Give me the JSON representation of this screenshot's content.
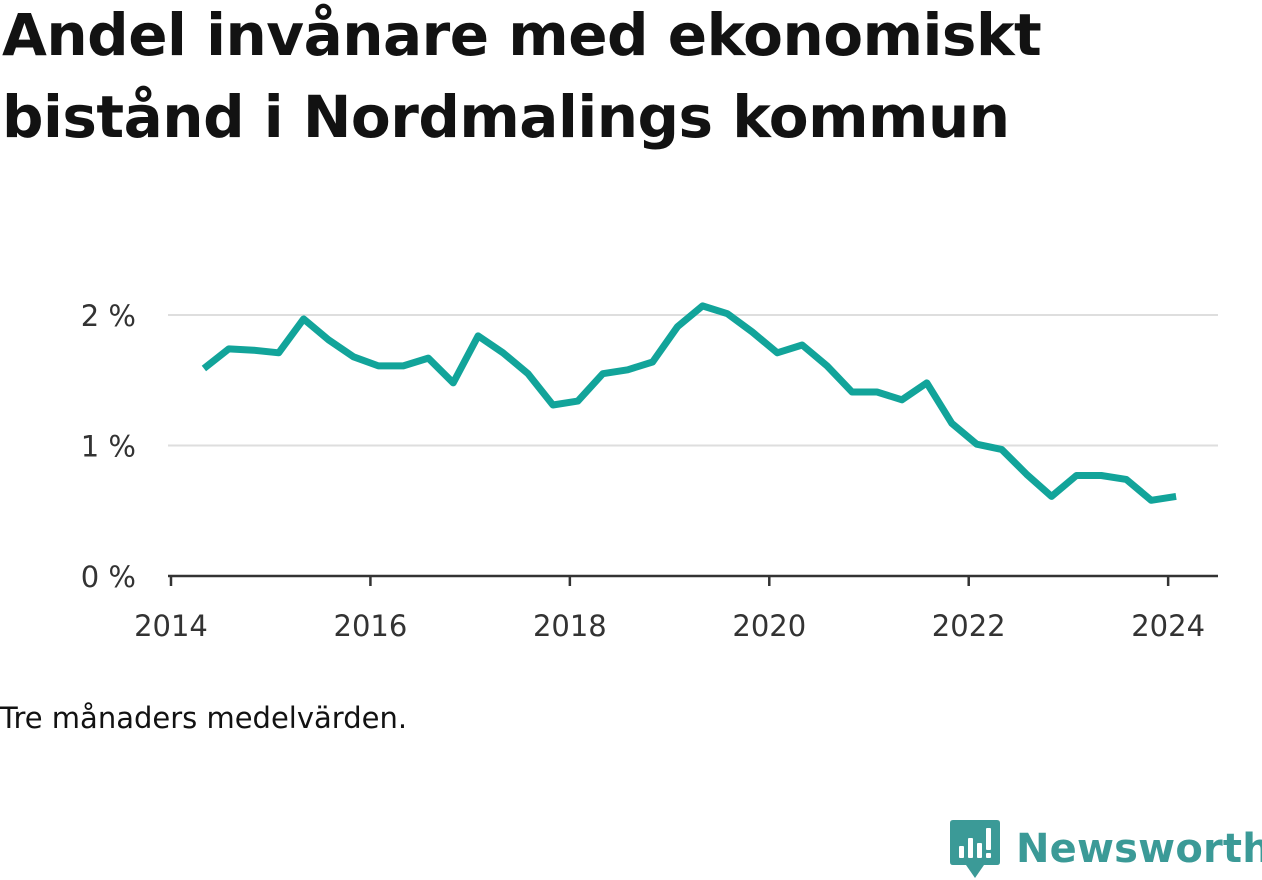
{
  "title": "Andel invånare med ekonomiskt bistånd i Nordmalings kommun",
  "note": "Tre månaders medelvärden.",
  "brand": {
    "name": "Newsworthy",
    "icon": "newsworthy-logo-icon",
    "color": "#3b9a97"
  },
  "chart_data": {
    "type": "line",
    "title": "Andel invånare med ekonomiskt bistånd i Nordmalings kommun",
    "xlabel": "",
    "ylabel": "",
    "grid": true,
    "legend": "none",
    "line_color": "#12a49a",
    "xlim": [
      2013.97,
      2024.5
    ],
    "ylim": [
      0,
      2.3
    ],
    "x_ticks": [
      {
        "value": 2014,
        "label": "2014"
      },
      {
        "value": 2016,
        "label": "2016"
      },
      {
        "value": 2018,
        "label": "2018"
      },
      {
        "value": 2020,
        "label": "2020"
      },
      {
        "value": 2022,
        "label": "2022"
      },
      {
        "value": 2024,
        "label": "2024"
      }
    ],
    "y_ticks": [
      {
        "value": 0,
        "label": "0 %"
      },
      {
        "value": 1,
        "label": "1 %"
      },
      {
        "value": 2,
        "label": "2 %"
      }
    ],
    "series": [
      {
        "values": [
          [
            2014.33,
            1.59
          ],
          [
            2014.58,
            1.74
          ],
          [
            2014.83,
            1.73
          ],
          [
            2015.08,
            1.71
          ],
          [
            2015.33,
            1.97
          ],
          [
            2015.58,
            1.81
          ],
          [
            2015.83,
            1.68
          ],
          [
            2016.08,
            1.61
          ],
          [
            2016.33,
            1.61
          ],
          [
            2016.58,
            1.67
          ],
          [
            2016.83,
            1.48
          ],
          [
            2017.08,
            1.84
          ],
          [
            2017.33,
            1.71
          ],
          [
            2017.58,
            1.55
          ],
          [
            2017.83,
            1.31
          ],
          [
            2018.08,
            1.34
          ],
          [
            2018.33,
            1.55
          ],
          [
            2018.58,
            1.58
          ],
          [
            2018.83,
            1.64
          ],
          [
            2019.08,
            1.91
          ],
          [
            2019.33,
            2.07
          ],
          [
            2019.58,
            2.01
          ],
          [
            2019.83,
            1.87
          ],
          [
            2020.08,
            1.71
          ],
          [
            2020.33,
            1.77
          ],
          [
            2020.58,
            1.61
          ],
          [
            2020.83,
            1.41
          ],
          [
            2021.08,
            1.41
          ],
          [
            2021.33,
            1.35
          ],
          [
            2021.58,
            1.48
          ],
          [
            2021.83,
            1.17
          ],
          [
            2022.08,
            1.01
          ],
          [
            2022.33,
            0.97
          ],
          [
            2022.58,
            0.78
          ],
          [
            2022.83,
            0.61
          ],
          [
            2023.08,
            0.77
          ],
          [
            2023.33,
            0.77
          ],
          [
            2023.58,
            0.74
          ],
          [
            2023.83,
            0.58
          ],
          [
            2024.08,
            0.61
          ]
        ]
      }
    ]
  }
}
